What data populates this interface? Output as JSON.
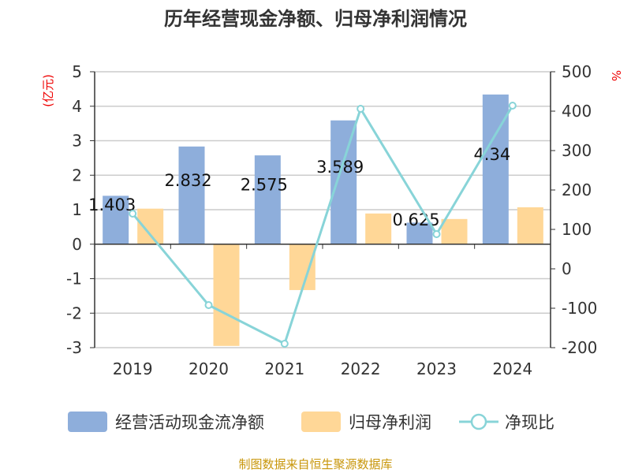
{
  "chart_data": {
    "type": "bar",
    "title": "历年经营现金净额、归母净利润情况",
    "categories": [
      "2019",
      "2020",
      "2021",
      "2022",
      "2023",
      "2024"
    ],
    "y_left": {
      "unit_label": "(亿元)",
      "range": [
        -3,
        5
      ],
      "ticks": [
        "5",
        "4",
        "3",
        "2",
        "1",
        "0",
        "-1",
        "-2",
        "-3"
      ]
    },
    "y_right": {
      "unit_label": "%",
      "range": [
        -200,
        500
      ],
      "ticks": [
        "500",
        "400",
        "300",
        "200",
        "100",
        "0",
        "-100",
        "-200"
      ]
    },
    "grid": true,
    "legend_position": "bottom",
    "series": [
      {
        "name": "经营活动现金流净额",
        "type": "bar",
        "axis": "left",
        "color": "#8eaedb",
        "values": [
          1.403,
          2.832,
          2.575,
          3.589,
          0.625,
          4.34
        ],
        "labels": [
          "1.403",
          "2.832",
          "2.575",
          "3.589",
          "0.625",
          "4.34"
        ]
      },
      {
        "name": "归母净利润",
        "type": "bar",
        "axis": "left",
        "color": "#ffd797",
        "values": [
          1.03,
          -2.95,
          -1.33,
          0.89,
          0.73,
          1.07
        ]
      },
      {
        "name": "净现比",
        "type": "line",
        "axis": "right",
        "color": "#88d4d8",
        "values": [
          140,
          -92,
          -190,
          406,
          88,
          414
        ]
      }
    ]
  },
  "source": "制图数据来自恒生聚源数据库"
}
